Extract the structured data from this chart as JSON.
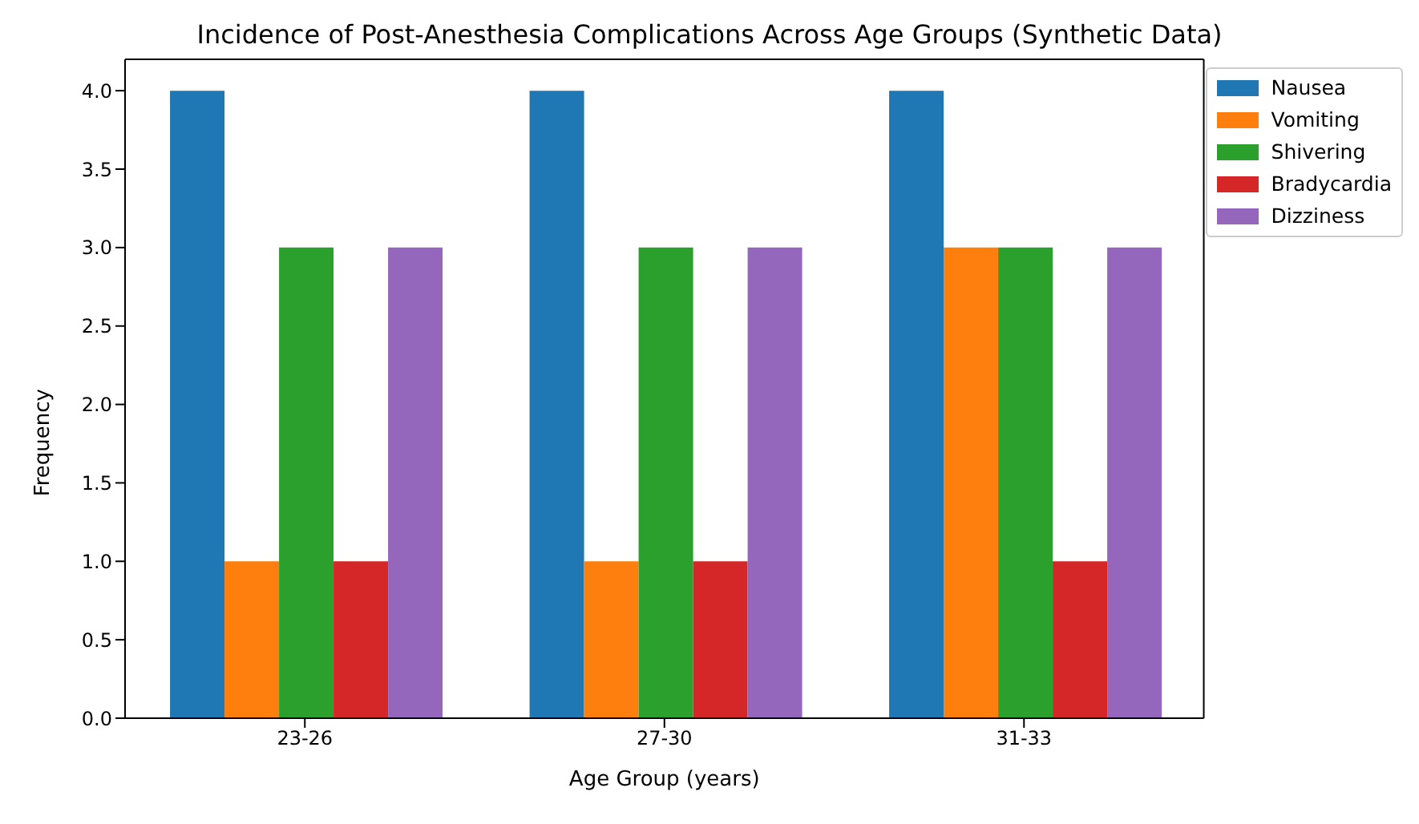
{
  "chart_data": {
    "type": "bar",
    "title": "Incidence of Post-Anesthesia Complications Across Age Groups (Synthetic Data)",
    "xlabel": "Age Group (years)",
    "ylabel": "Frequency",
    "categories": [
      "23-26",
      "27-30",
      "31-33"
    ],
    "series": [
      {
        "name": "Nausea",
        "color": "#1f77b4",
        "values": [
          4,
          4,
          4
        ]
      },
      {
        "name": "Vomiting",
        "color": "#ff7f0e",
        "values": [
          1,
          1,
          3
        ]
      },
      {
        "name": "Shivering",
        "color": "#2ca02c",
        "values": [
          3,
          3,
          3
        ]
      },
      {
        "name": "Bradycardia",
        "color": "#d62728",
        "values": [
          1,
          1,
          1
        ]
      },
      {
        "name": "Dizziness",
        "color": "#9467bd",
        "values": [
          3,
          3,
          3
        ]
      }
    ],
    "ylim": [
      0,
      4.2
    ],
    "yticks": [
      {
        "value": 0,
        "label": "0.0"
      },
      {
        "value": 0.5,
        "label": "0.5"
      },
      {
        "value": 1,
        "label": "1.0"
      },
      {
        "value": 1.5,
        "label": "1.5"
      },
      {
        "value": 2,
        "label": "2.0"
      },
      {
        "value": 2.5,
        "label": "2.5"
      },
      {
        "value": 3,
        "label": "3.0"
      },
      {
        "value": 3.5,
        "label": "3.5"
      },
      {
        "value": 4,
        "label": "4.0"
      }
    ],
    "grid": false,
    "legend": "top right"
  }
}
